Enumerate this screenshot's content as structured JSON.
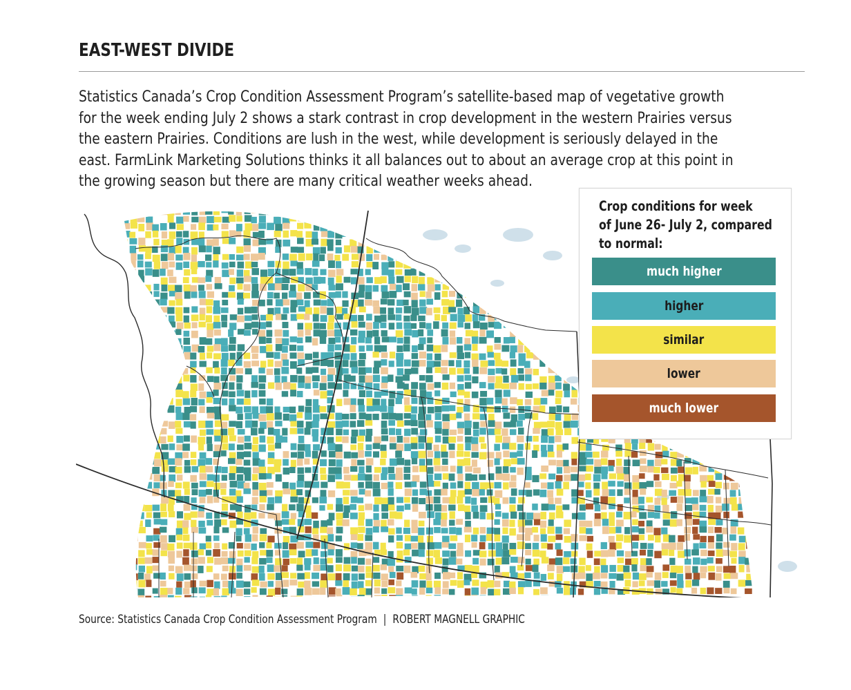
{
  "header": {
    "title": "EAST-WEST DIVIDE"
  },
  "intro": {
    "lines": [
      "Statistics Canada’s Crop Condition Assessment Program’s satellite-based map of vegetative growth",
      "for the week ending July 2 shows a stark contrast in crop development in the western Prairies versus",
      "the eastern Prairies. Conditions are lush in the west, while development is seriously delayed in the",
      "east. FarmLink Marketing Solutions thinks it all balances out to about an average crop at this point in",
      "the growing season but there are many critical weather weeks ahead."
    ]
  },
  "legend": {
    "title_lines": [
      "Crop conditions for week",
      "of June 26- July 2, compared",
      "to normal:"
    ],
    "items": [
      {
        "label": "much higher",
        "color": "#3a8f8a",
        "text_color": "#ffffff"
      },
      {
        "label": "higher",
        "color": "#4aaeb8",
        "text_color": "#1d1d1d"
      },
      {
        "label": "similar",
        "color": "#f3e34a",
        "text_color": "#1d1d1d"
      },
      {
        "label": "lower",
        "color": "#eec89a",
        "text_color": "#1d1d1d"
      },
      {
        "label": "much lower",
        "color": "#a5552c",
        "text_color": "#ffffff"
      }
    ]
  },
  "map": {
    "colors": {
      "background": "#ffffff",
      "water": "#cfe0ea",
      "boundary": "#2a2a2a",
      "much_higher": "#3a8f8a",
      "higher": "#4aaeb8",
      "similar": "#f3e34a",
      "lower": "#eec89a",
      "much_lower": "#a5552c"
    }
  },
  "footer": {
    "source": "Source: Statistics Canada Crop Condition Assessment Program",
    "separator": "|",
    "credit": "ROBERT MAGNELL GRAPHIC"
  }
}
